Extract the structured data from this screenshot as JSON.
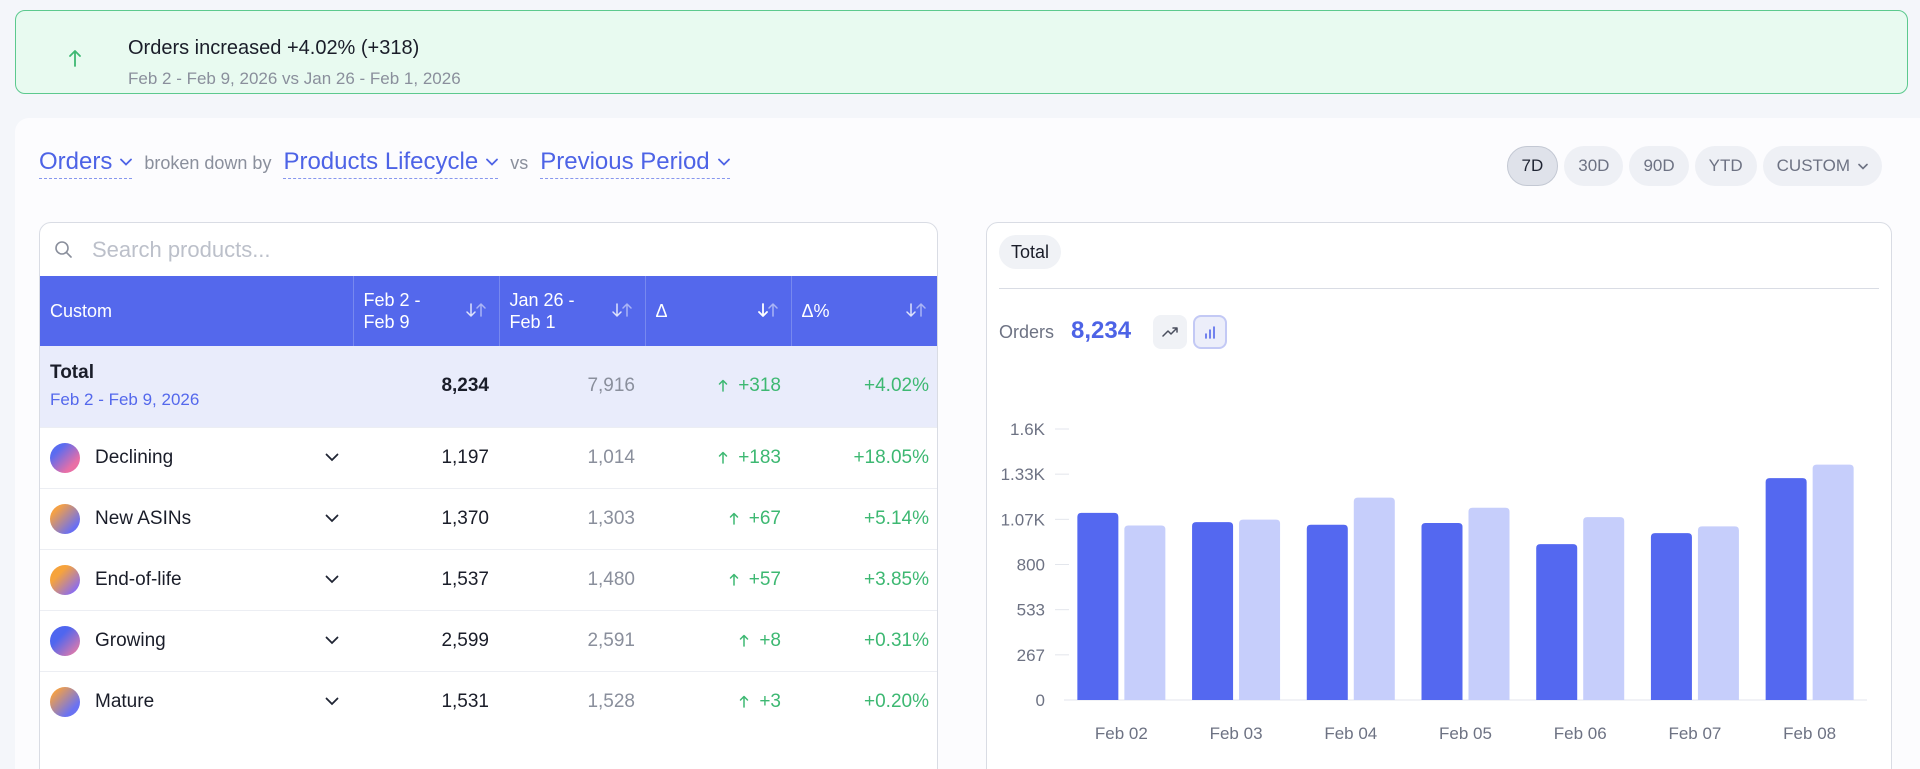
{
  "alert": {
    "title": "Orders increased +4.02% (+318)",
    "subtitle": "Feb 2 - Feb 9, 2026 vs Jan 26 - Feb 1, 2026",
    "icon": "arrow-up-icon",
    "color": "#3db872"
  },
  "controls": {
    "metric": "Orders",
    "connector1": "broken down by",
    "breakdown": "Products Lifecycle",
    "connector2": "vs",
    "comparison": "Previous Period"
  },
  "ranges": [
    {
      "label": "7D",
      "active": true
    },
    {
      "label": "30D",
      "active": false
    },
    {
      "label": "90D",
      "active": false
    },
    {
      "label": "YTD",
      "active": false
    },
    {
      "label": "CUSTOM",
      "active": false
    }
  ],
  "table": {
    "search_placeholder": "Search products...",
    "columns": [
      "Custom",
      "Feb 2 - Feb 9",
      "Jan 26 - Feb 1",
      "Δ",
      "Δ%"
    ],
    "total": {
      "label": "Total",
      "sublabel": "Feb 2 - Feb 9, 2026",
      "current": "8,234",
      "previous": "7,916",
      "delta": "+318",
      "delta_pct": "+4.02%"
    },
    "rows": [
      {
        "name": "Declining",
        "current": "1,197",
        "previous": "1,014",
        "delta": "+183",
        "delta_pct": "+18.05%"
      },
      {
        "name": "New ASINs",
        "current": "1,370",
        "previous": "1,303",
        "delta": "+67",
        "delta_pct": "+5.14%"
      },
      {
        "name": "End-of-life",
        "current": "1,537",
        "previous": "1,480",
        "delta": "+57",
        "delta_pct": "+3.85%"
      },
      {
        "name": "Growing",
        "current": "2,599",
        "previous": "2,591",
        "delta": "+8",
        "delta_pct": "+0.31%"
      },
      {
        "name": "Mature",
        "current": "1,531",
        "previous": "1,528",
        "delta": "+3",
        "delta_pct": "+0.20%"
      }
    ],
    "accent": "#5468ec",
    "positive_color": "#3db872"
  },
  "chart": {
    "tab": "Total",
    "metric_label": "Orders",
    "metric_value": "8,234"
  },
  "chart_data": {
    "type": "bar",
    "categories": [
      "Feb 02",
      "Feb 03",
      "Feb 04",
      "Feb 05",
      "Feb 06",
      "Feb 07",
      "Feb 08"
    ],
    "series": [
      {
        "values": [
          1105,
          1050,
          1035,
          1045,
          920,
          985,
          1310
        ],
        "color": "#5468f0"
      },
      {
        "values": [
          1030,
          1065,
          1195,
          1135,
          1080,
          1025,
          1390
        ],
        "color": "#c6cefb"
      }
    ],
    "y_ticks": [
      "0",
      "267",
      "533",
      "800",
      "1.07K",
      "1.33K",
      "1.6K"
    ],
    "ylim": [
      0,
      1600
    ],
    "grid": false,
    "legend": "none"
  }
}
